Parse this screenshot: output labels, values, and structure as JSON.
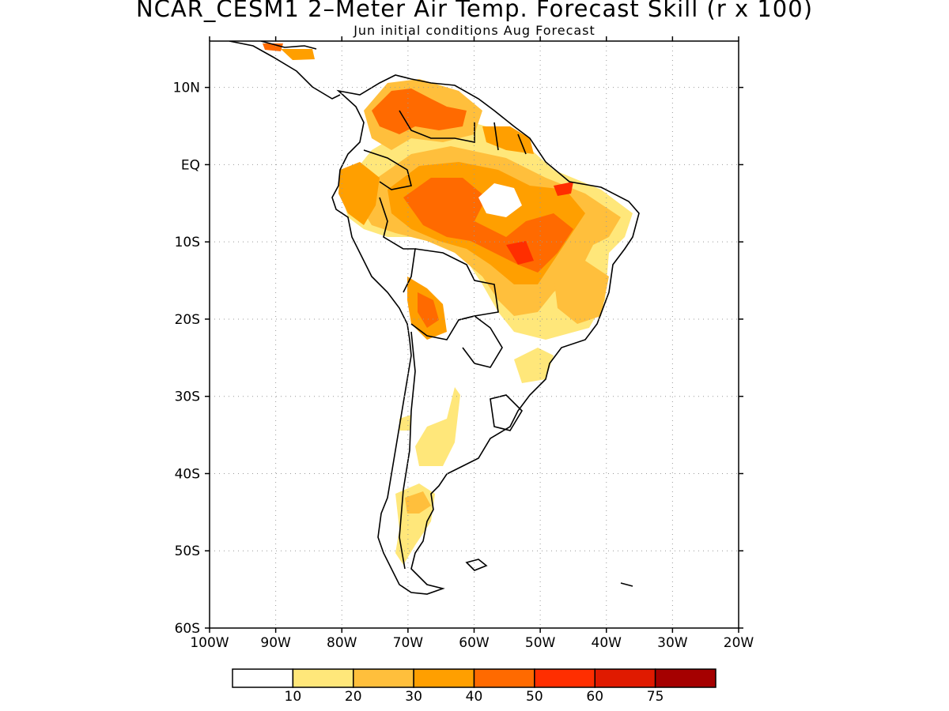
{
  "title": "NCAR_CESM1 2–Meter Air Temp. Forecast Skill (r x 100)",
  "subtitle": "Jun initial conditions  Aug Forecast",
  "lat_ticks": [
    {
      "label": "10N",
      "value": 10
    },
    {
      "label": "EQ",
      "value": 0
    },
    {
      "label": "10S",
      "value": -10
    },
    {
      "label": "20S",
      "value": -20
    },
    {
      "label": "30S",
      "value": -30
    },
    {
      "label": "40S",
      "value": -40
    },
    {
      "label": "50S",
      "value": -50
    },
    {
      "label": "60S",
      "value": -60
    }
  ],
  "lon_ticks": [
    {
      "label": "100W",
      "value": -100
    },
    {
      "label": "90W",
      "value": -90
    },
    {
      "label": "80W",
      "value": -80
    },
    {
      "label": "70W",
      "value": -70
    },
    {
      "label": "60W",
      "value": -60
    },
    {
      "label": "50W",
      "value": -50
    },
    {
      "label": "40W",
      "value": -40
    },
    {
      "label": "30W",
      "value": -30
    },
    {
      "label": "20W",
      "value": -20
    }
  ],
  "map_extent": {
    "lon_min": -100,
    "lon_max": -20,
    "lat_min": -60,
    "lat_max": 16
  },
  "colorbar": {
    "colors": [
      "#ffffff",
      "#ffe77a",
      "#ffbf3c",
      "#ff9f00",
      "#ff6a00",
      "#ff2e00",
      "#e01a00",
      "#a50000"
    ],
    "labels": [
      "10",
      "20",
      "30",
      "40",
      "50",
      "60",
      "75"
    ]
  },
  "legend_colors": {
    "land_outline": "#000000",
    "grid": "#999999"
  }
}
